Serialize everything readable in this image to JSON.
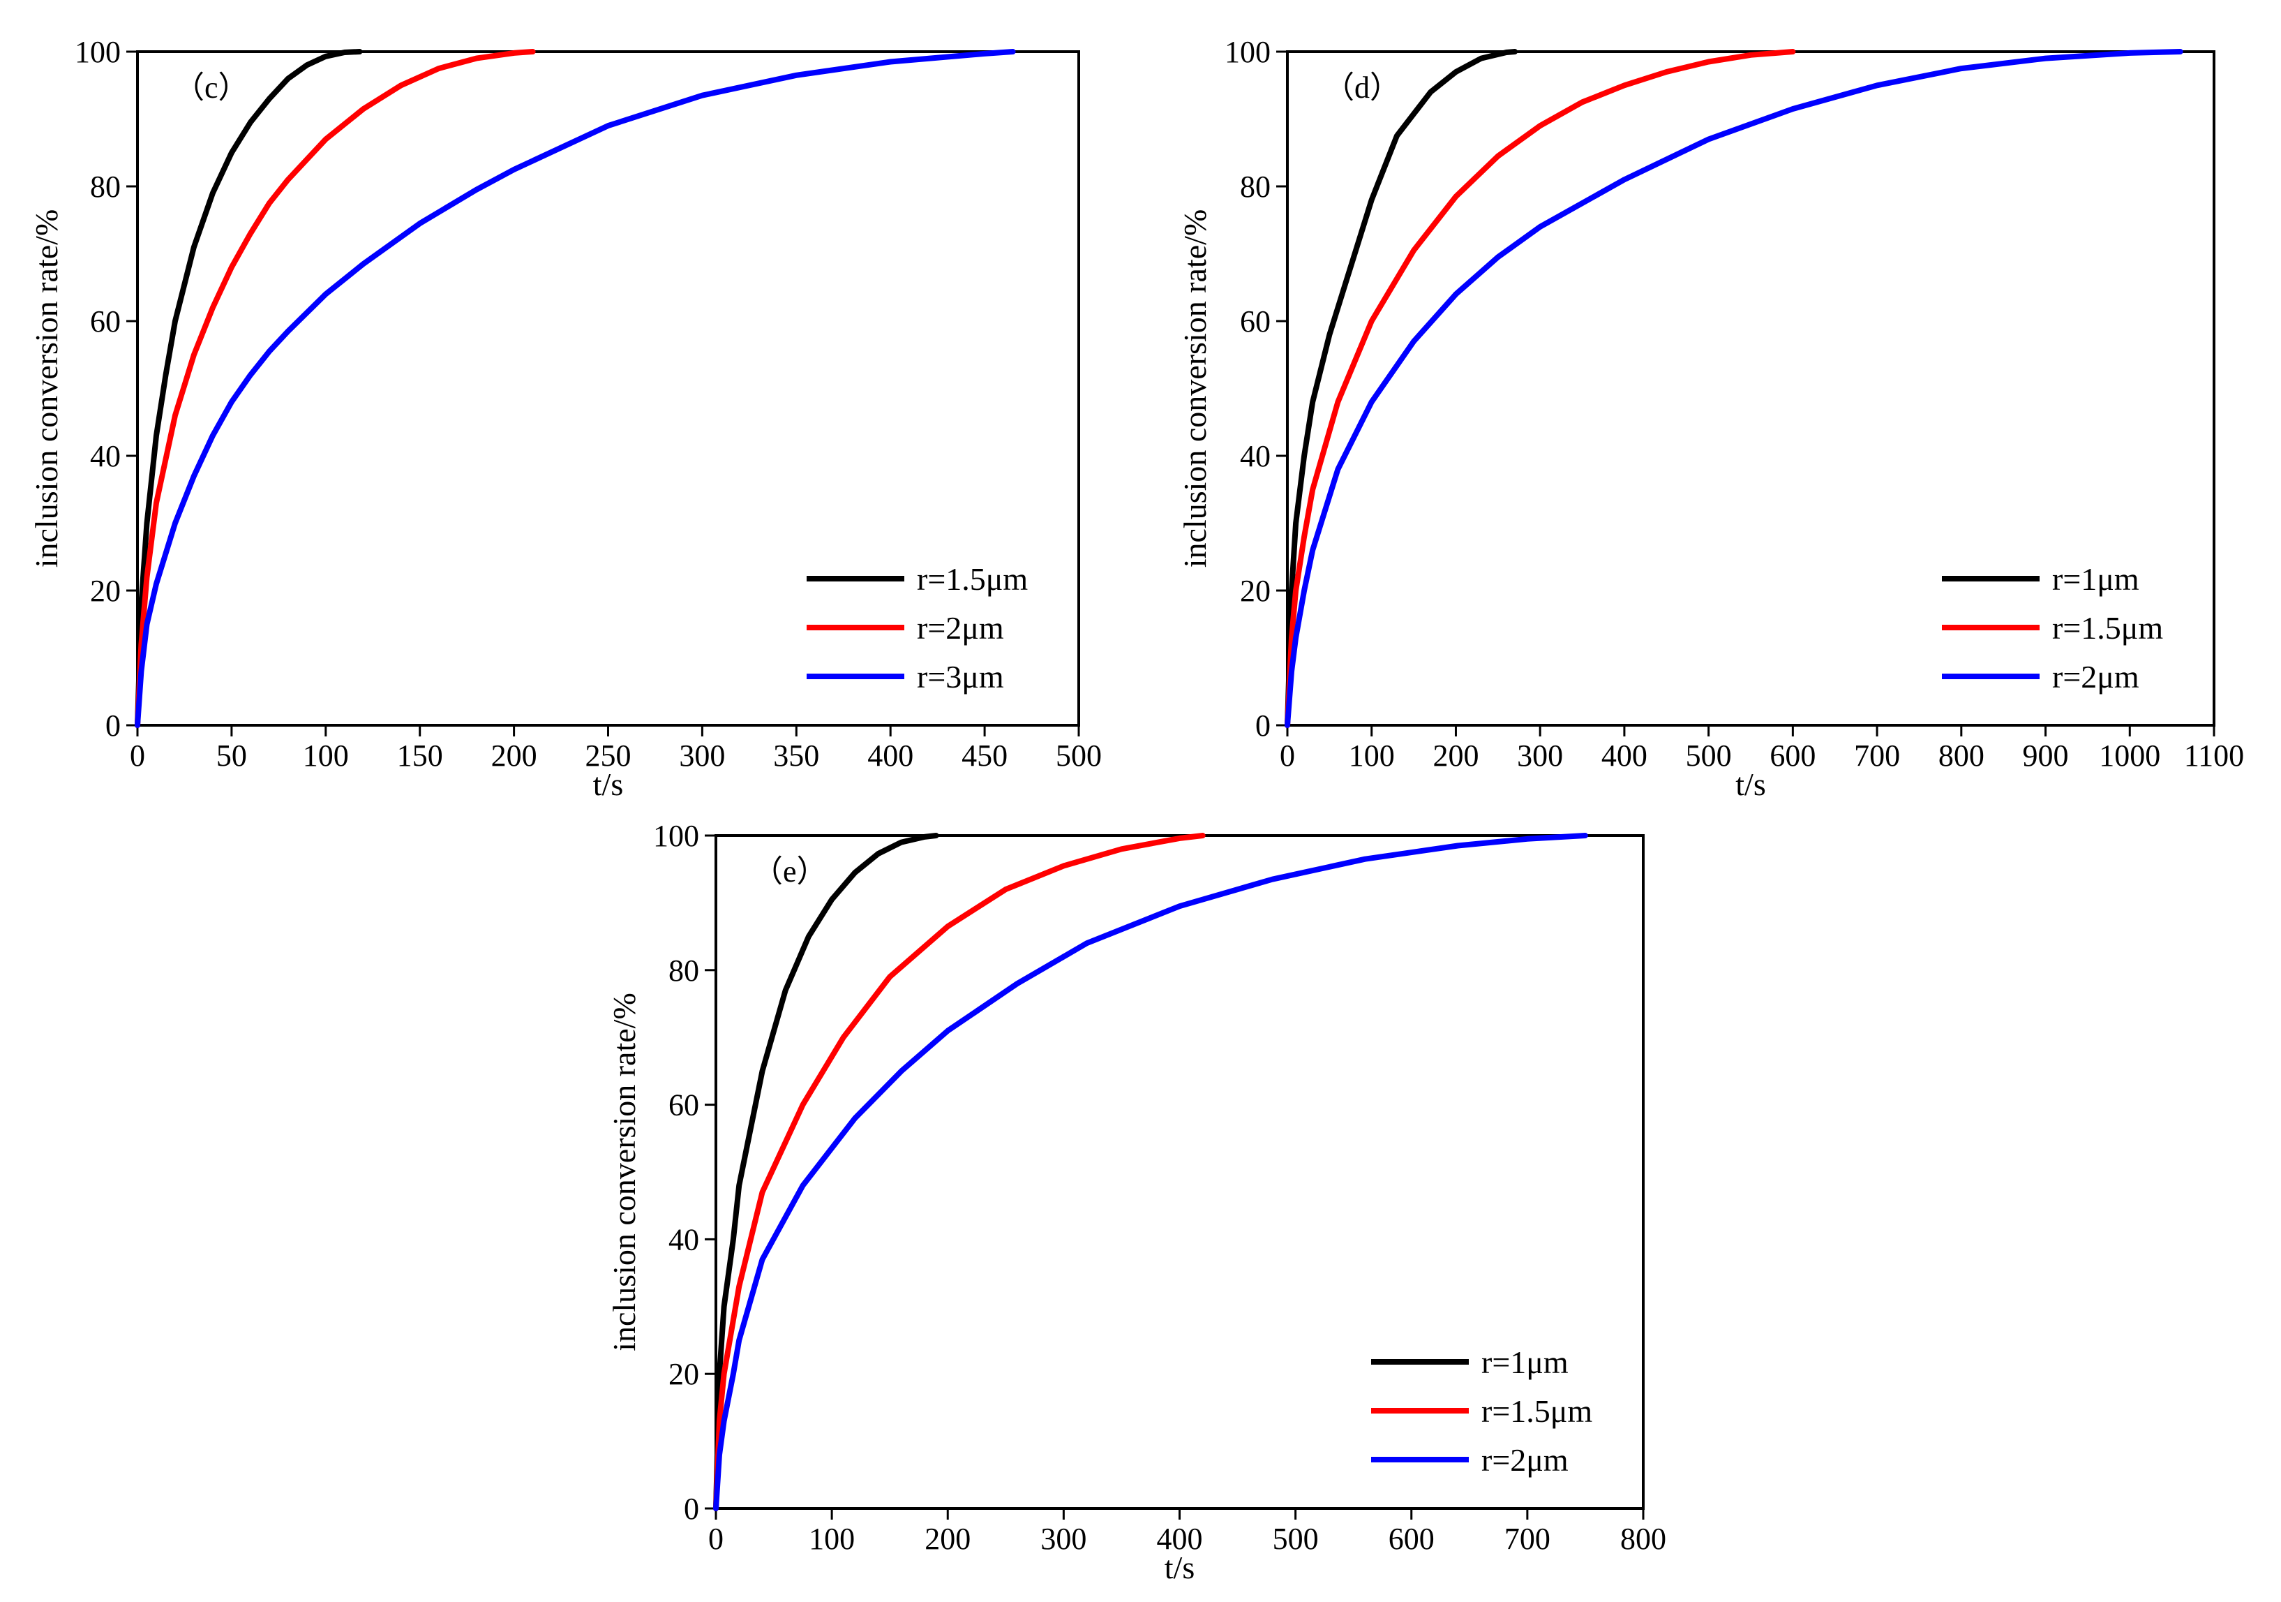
{
  "chart_data": [
    {
      "type": "line",
      "panel_label": "（c）",
      "xlabel": "t/s",
      "ylabel": "inclusion conversion rate/%",
      "xlim": [
        0,
        500
      ],
      "ylim": [
        0,
        100
      ],
      "xticks": [
        0,
        50,
        100,
        150,
        200,
        250,
        300,
        350,
        400,
        450,
        500
      ],
      "yticks": [
        0,
        20,
        40,
        60,
        80,
        100
      ],
      "legend_position": "bottom-right",
      "series": [
        {
          "name": "r=1.5μm",
          "color": "#000000",
          "x": [
            0,
            2,
            5,
            10,
            15,
            20,
            30,
            40,
            50,
            60,
            70,
            80,
            90,
            100,
            110,
            118
          ],
          "y": [
            0,
            18,
            30,
            43,
            52,
            60,
            71,
            79,
            85,
            89.5,
            93,
            96,
            98,
            99.3,
            99.9,
            100
          ]
        },
        {
          "name": "r=2μm",
          "color": "#ff0000",
          "x": [
            0,
            2,
            5,
            10,
            20,
            30,
            40,
            50,
            60,
            70,
            80,
            90,
            100,
            120,
            140,
            160,
            180,
            200,
            210
          ],
          "y": [
            0,
            12,
            22,
            33,
            46,
            55,
            62,
            68,
            73,
            77.5,
            81,
            84,
            87,
            91.5,
            95,
            97.5,
            99,
            99.8,
            100
          ]
        },
        {
          "name": "r=3μm",
          "color": "#0000ff",
          "x": [
            0,
            2,
            5,
            10,
            20,
            30,
            40,
            50,
            60,
            70,
            80,
            100,
            120,
            150,
            180,
            200,
            250,
            300,
            350,
            400,
            450,
            465
          ],
          "y": [
            0,
            8,
            15,
            21,
            30,
            37,
            43,
            48,
            52,
            55.5,
            58.5,
            64,
            68.5,
            74.5,
            79.5,
            82.5,
            89,
            93.5,
            96.5,
            98.5,
            99.7,
            100
          ]
        }
      ]
    },
    {
      "type": "line",
      "panel_label": "（d）",
      "xlabel": "t/s",
      "ylabel": "inclusion conversion rate/%",
      "xlim": [
        0,
        1100
      ],
      "ylim": [
        0,
        100
      ],
      "xticks": [
        0,
        100,
        200,
        300,
        400,
        500,
        600,
        700,
        800,
        900,
        1000,
        1100
      ],
      "yticks": [
        0,
        20,
        40,
        60,
        80,
        100
      ],
      "legend_position": "bottom-right",
      "series": [
        {
          "name": "r=1μm",
          "color": "#000000",
          "x": [
            0,
            5,
            10,
            20,
            30,
            50,
            70,
            100,
            130,
            170,
            200,
            230,
            260,
            270
          ],
          "y": [
            0,
            20,
            30,
            40,
            48,
            58,
            66,
            78,
            87.5,
            94,
            97,
            99,
            99.9,
            100
          ]
        },
        {
          "name": "r=1.5μm",
          "color": "#ff0000",
          "x": [
            0,
            5,
            10,
            20,
            30,
            60,
            100,
            150,
            200,
            250,
            300,
            350,
            400,
            450,
            500,
            550,
            600
          ],
          "y": [
            0,
            13,
            20,
            28,
            35,
            48,
            60,
            70.5,
            78.5,
            84.5,
            89,
            92.5,
            95,
            97,
            98.5,
            99.5,
            100
          ]
        },
        {
          "name": "r=2μm",
          "color": "#0000ff",
          "x": [
            0,
            5,
            10,
            20,
            30,
            60,
            100,
            150,
            200,
            250,
            300,
            400,
            500,
            600,
            700,
            800,
            900,
            1000,
            1060
          ],
          "y": [
            0,
            8,
            13,
            20,
            26,
            38,
            48,
            57,
            64,
            69.5,
            74,
            81,
            87,
            91.5,
            95,
            97.5,
            99,
            99.8,
            100
          ]
        }
      ]
    },
    {
      "type": "line",
      "panel_label": "（e）",
      "xlabel": "t/s",
      "ylabel": "inclusion conversion rate/%",
      "xlim": [
        0,
        800
      ],
      "ylim": [
        0,
        100
      ],
      "xticks": [
        0,
        100,
        200,
        300,
        400,
        500,
        600,
        700,
        800
      ],
      "yticks": [
        0,
        20,
        40,
        60,
        80,
        100
      ],
      "legend_position": "bottom-right",
      "series": [
        {
          "name": "r=1μm",
          "color": "#000000",
          "x": [
            0,
            3,
            7,
            15,
            20,
            40,
            60,
            80,
            100,
            120,
            140,
            160,
            180,
            190
          ],
          "y": [
            0,
            20,
            30,
            40,
            48,
            65,
            77,
            85,
            90.5,
            94.5,
            97.3,
            99,
            99.8,
            100
          ]
        },
        {
          "name": "r=1.5μm",
          "color": "#ff0000",
          "x": [
            0,
            3,
            7,
            15,
            20,
            40,
            75,
            110,
            150,
            200,
            250,
            300,
            350,
            400,
            420
          ],
          "y": [
            0,
            13,
            20,
            28,
            33,
            47,
            60,
            70,
            79,
            86.5,
            92,
            95.5,
            98,
            99.6,
            100
          ]
        },
        {
          "name": "r=2μm",
          "color": "#0000ff",
          "x": [
            0,
            3,
            7,
            15,
            20,
            40,
            75,
            120,
            160,
            200,
            260,
            320,
            400,
            480,
            560,
            640,
            700,
            750
          ],
          "y": [
            0,
            8,
            13,
            20,
            25,
            37,
            48,
            58,
            65,
            71,
            78,
            84,
            89.5,
            93.5,
            96.5,
            98.5,
            99.5,
            100
          ]
        }
      ]
    }
  ]
}
